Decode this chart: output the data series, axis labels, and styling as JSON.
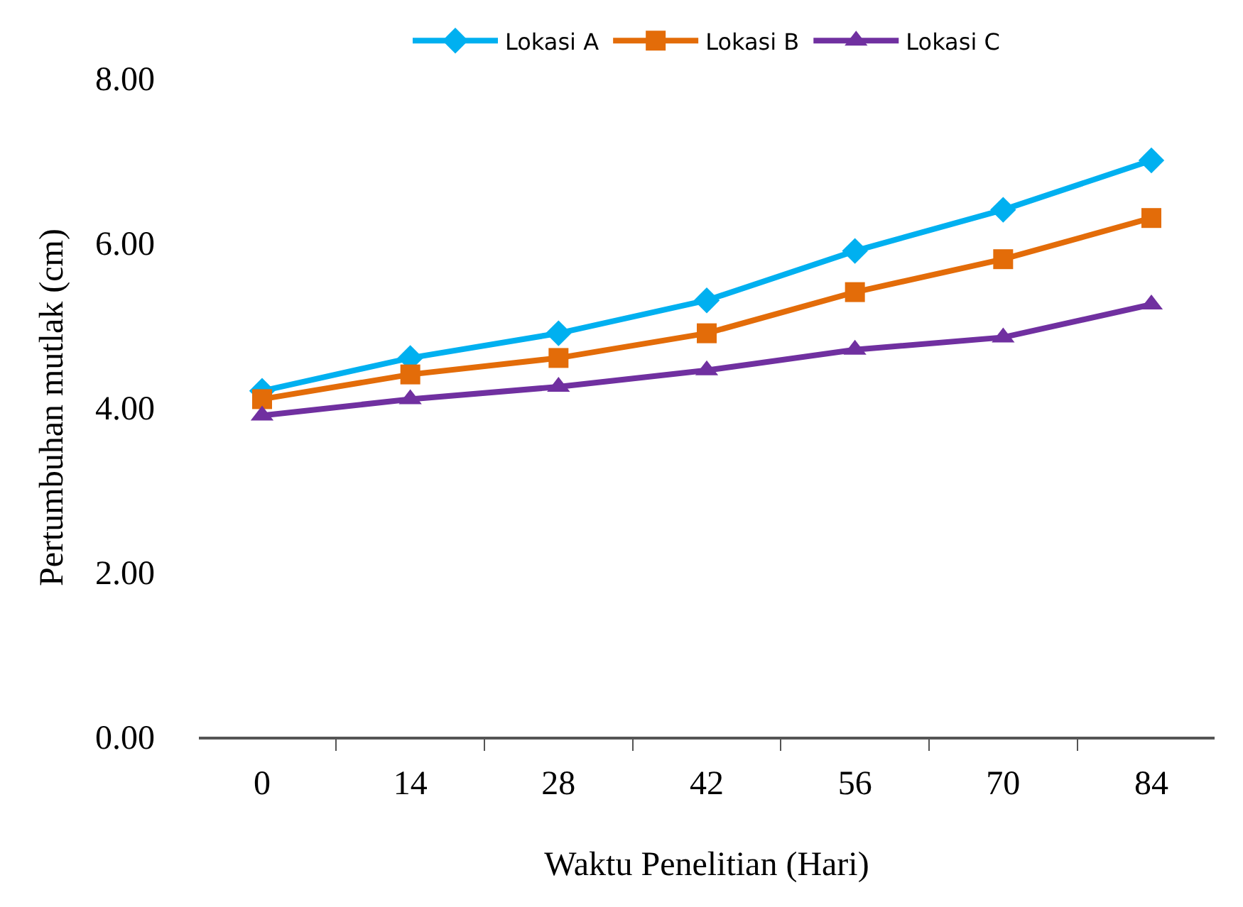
{
  "chart_data": {
    "type": "line",
    "xlabel": "Waktu Penelitian (Hari)",
    "ylabel": "Pertumbuhan mutlak (cm)",
    "categories": [
      "0",
      "14",
      "28",
      "42",
      "56",
      "70",
      "84"
    ],
    "series": [
      {
        "name": "Lokasi A",
        "color": "#00b0f0",
        "marker": "diamond",
        "values": [
          4.2,
          4.6,
          4.9,
          5.3,
          5.9,
          6.4,
          7.0
        ]
      },
      {
        "name": "Lokasi B",
        "color": "#e36c09",
        "marker": "square",
        "values": [
          4.1,
          4.4,
          4.6,
          4.9,
          5.4,
          5.8,
          6.3
        ]
      },
      {
        "name": "Lokasi C",
        "color": "#7030a0",
        "marker": "triangle",
        "values": [
          3.9,
          4.1,
          4.25,
          4.45,
          4.7,
          4.85,
          5.25
        ]
      }
    ],
    "ylim": [
      0,
      8
    ],
    "yticks": [
      {
        "value": 0,
        "label": "0.00"
      },
      {
        "value": 2,
        "label": "2.00"
      },
      {
        "value": 4,
        "label": "4.00"
      },
      {
        "value": 6,
        "label": "6.00"
      },
      {
        "value": 8,
        "label": "8.00"
      }
    ],
    "grid": false,
    "legend": "top",
    "line_style": "solid"
  }
}
